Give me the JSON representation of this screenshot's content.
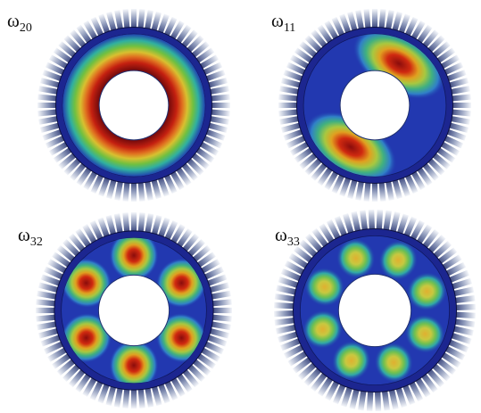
{
  "panels": [
    {
      "symbol": "ω",
      "subscript": "20"
    },
    {
      "symbol": "ω",
      "subscript": "11"
    },
    {
      "symbol": "ω",
      "subscript": "32"
    },
    {
      "symbol": "ω",
      "subscript": "33"
    }
  ]
}
